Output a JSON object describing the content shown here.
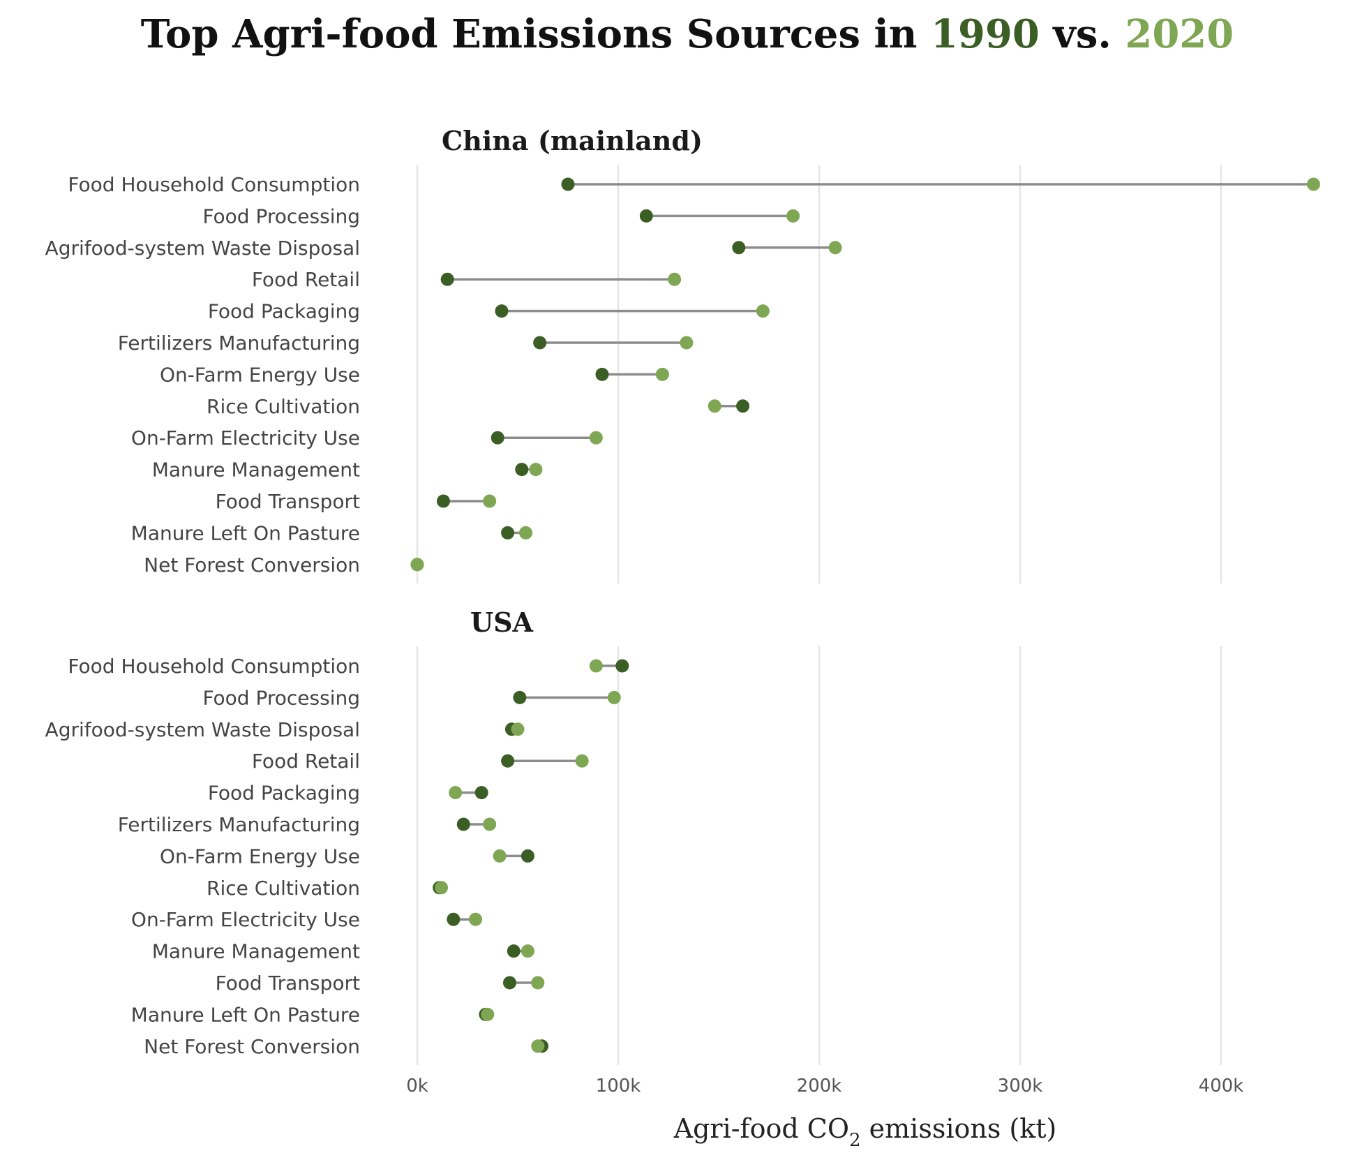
{
  "chart_data": {
    "type": "dumbbell",
    "title": {
      "prefix": "Top Agri-food Emissions Sources in ",
      "year_a": "1990",
      "middle": " vs. ",
      "year_b": "2020"
    },
    "xlabel": {
      "main": "Agri-food CO",
      "sub": "2",
      "rest": " emissions (kt)"
    },
    "xlim": [
      0,
      450000
    ],
    "xticks": [
      0,
      100000,
      200000,
      300000,
      400000
    ],
    "xtick_labels": [
      "0k",
      "100k",
      "200k",
      "300k",
      "400k"
    ],
    "grid": true,
    "categories": [
      "Food Household Consumption",
      "Food Processing",
      "Agrifood-system Waste Disposal",
      "Food Retail",
      "Food Packaging",
      "Fertilizers Manufacturing",
      "On-Farm Energy Use",
      "Rice Cultivation",
      "On-Farm Electricity Use",
      "Manure Management",
      "Food Transport",
      "Manure Left On Pasture",
      "Net Forest Conversion"
    ],
    "series_colors": {
      "1990": "#3b5e25",
      "2020": "#7ea653"
    },
    "connector_color": "#8c8c8c",
    "panels": [
      {
        "name": "China (mainland)",
        "values_1990": [
          75000,
          114000,
          160000,
          15000,
          42000,
          61000,
          92000,
          162000,
          40000,
          52000,
          13000,
          45000,
          0
        ],
        "values_2020": [
          446000,
          187000,
          208000,
          128000,
          172000,
          134000,
          122000,
          148000,
          89000,
          59000,
          36000,
          54000,
          0
        ]
      },
      {
        "name": "USA",
        "values_1990": [
          102000,
          51000,
          47000,
          45000,
          32000,
          23000,
          55000,
          11000,
          18000,
          48000,
          46000,
          34000,
          62000
        ],
        "values_2020": [
          89000,
          98000,
          50000,
          82000,
          19000,
          36000,
          41000,
          12000,
          29000,
          55000,
          60000,
          35000,
          60000
        ]
      }
    ]
  }
}
